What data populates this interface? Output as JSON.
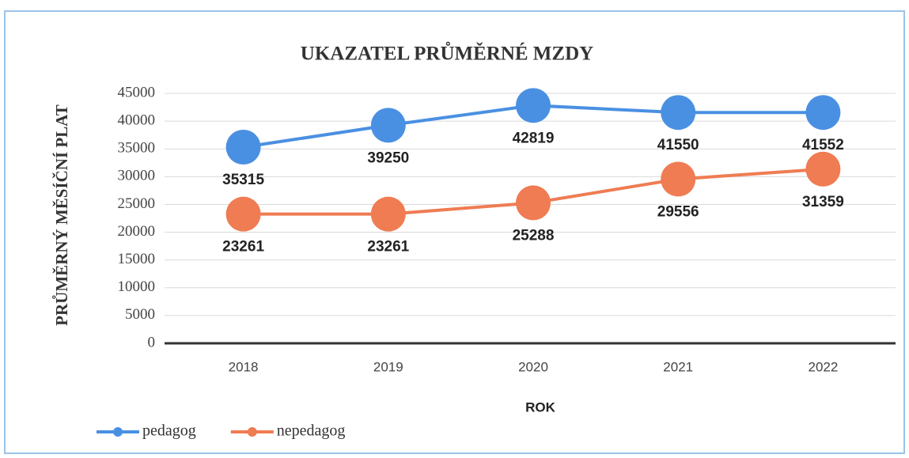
{
  "chart_data": {
    "type": "line",
    "title": "UKAZATEL PRŮMĚRNÉ MZDY",
    "y_label": "PRŮMĚRNÝ MĚSÍČNÍ PLAT",
    "x_label": "ROK",
    "categories": [
      "2018",
      "2019",
      "2020",
      "2021",
      "2022"
    ],
    "series": [
      {
        "name": "pedagog",
        "color": "#4a90e2",
        "values": [
          35315,
          39250,
          42819,
          41550,
          41552
        ]
      },
      {
        "name": "nepedagog",
        "color": "#ef7c52",
        "values": [
          23261,
          23261,
          25288,
          29556,
          31359
        ]
      }
    ],
    "ylim": [
      0,
      45000
    ],
    "yticks": [
      0,
      5000,
      10000,
      15000,
      20000,
      25000,
      30000,
      35000,
      40000,
      45000
    ],
    "grid": true,
    "legend": "bottom-left"
  }
}
